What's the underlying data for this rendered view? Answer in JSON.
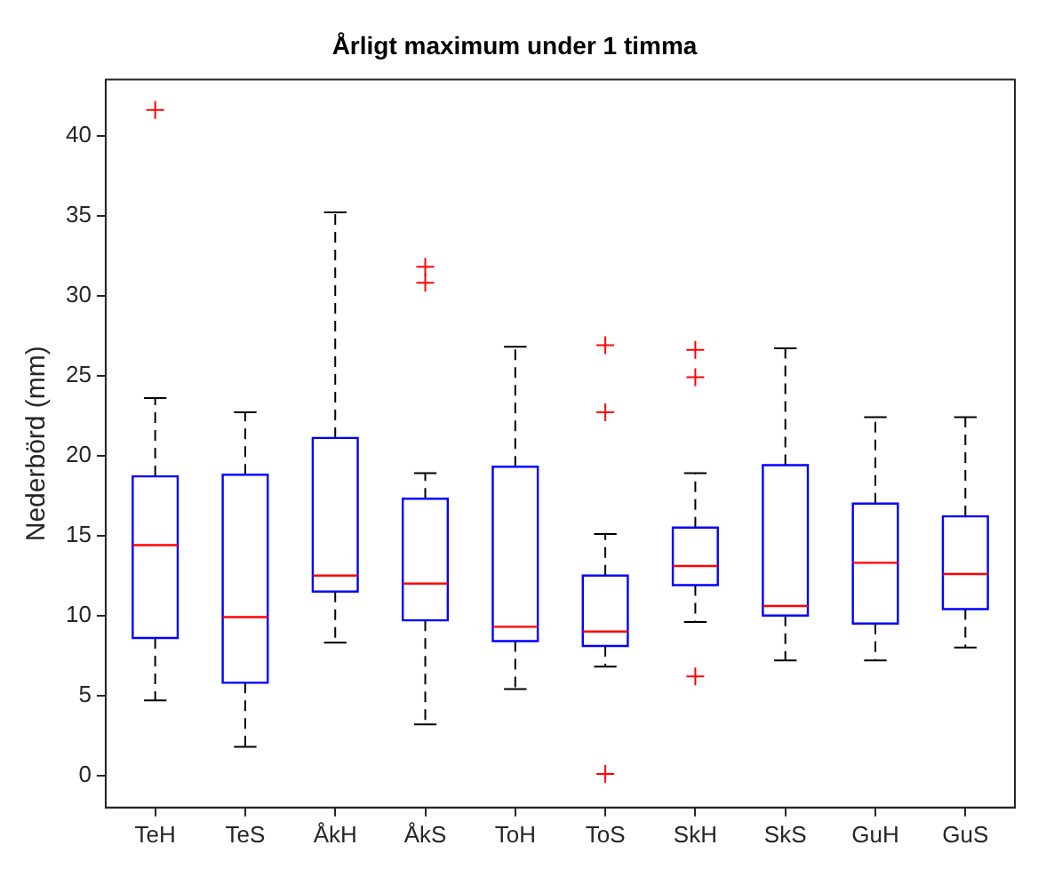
{
  "chart_data": {
    "type": "box",
    "title": "Årligt maximum under 1 timma",
    "ylabel": "Nederbörd (mm)",
    "categories": [
      "TeH",
      "TeS",
      "ÅkH",
      "ÅkS",
      "ToH",
      "ToS",
      "SkH",
      "SkS",
      "GuH",
      "GuS"
    ],
    "color": "#0000ff",
    "boxes": [
      {
        "low": 4.7,
        "q1": 8.6,
        "median": 14.4,
        "q3": 18.7,
        "high": 23.6,
        "outliers": [
          41.6
        ]
      },
      {
        "low": 1.8,
        "q1": 5.8,
        "median": 9.9,
        "q3": 18.8,
        "high": 22.7
      },
      {
        "low": 8.3,
        "q1": 11.5,
        "median": 12.5,
        "q3": 21.1,
        "high": 35.2
      },
      {
        "low": 3.2,
        "q1": 9.7,
        "median": 12.0,
        "q3": 17.3,
        "high": 18.9,
        "outliers": [
          30.8,
          31.8
        ]
      },
      {
        "low": 5.4,
        "q1": 8.4,
        "median": 9.3,
        "q3": 19.3,
        "high": 26.8
      },
      {
        "low": 6.8,
        "q1": 8.1,
        "median": 9.0,
        "q3": 12.5,
        "high": 15.1,
        "outliers": [
          0.1,
          22.7,
          26.9
        ]
      },
      {
        "low": 9.6,
        "q1": 11.9,
        "median": 13.1,
        "q3": 15.5,
        "high": 18.9,
        "outliers": [
          6.2,
          24.9,
          26.6
        ]
      },
      {
        "low": 7.2,
        "q1": 10.0,
        "median": 10.6,
        "q3": 19.4,
        "high": 26.7
      },
      {
        "low": 7.2,
        "q1": 9.5,
        "median": 13.3,
        "q3": 17.0,
        "high": 22.4
      },
      {
        "low": 8.0,
        "q1": 10.4,
        "median": 12.6,
        "q3": 16.2,
        "high": 22.4
      }
    ],
    "ylim": [
      -2,
      43.5
    ],
    "yticks": [
      0,
      5,
      10,
      15,
      20,
      25,
      30,
      35,
      40
    ],
    "grid": false,
    "legend": false,
    "marker": "cross"
  }
}
